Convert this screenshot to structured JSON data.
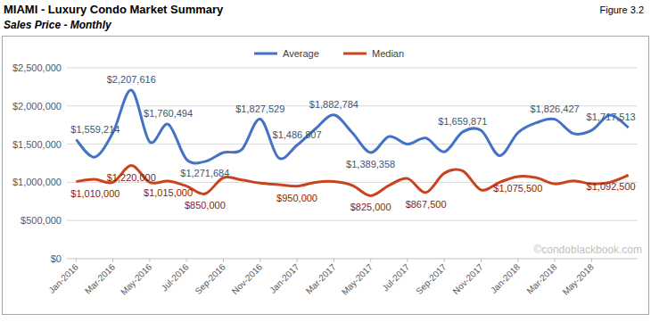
{
  "chart_data": {
    "type": "line",
    "title": "MIAMI - Luxury Condo Market Summary",
    "subtitle": "Sales Price - Monthly",
    "figure": "Figure 3.2",
    "source": "©condoblackbook.com",
    "categories": [
      "Jan-2016",
      null,
      "Mar-2016",
      null,
      "May-2016",
      null,
      "Jul-2016",
      null,
      "Sep-2016",
      null,
      "Nov-2016",
      null,
      "Jan-2017",
      null,
      "Mar-2017",
      null,
      "May-2017",
      null,
      "Jul-2017",
      null,
      "Sep-2017",
      null,
      "Nov-2017",
      null,
      "Jan-2018",
      null,
      "Mar-2018",
      null,
      "May-2018",
      null,
      null
    ],
    "series": [
      {
        "name": "Average",
        "color": "#4472c4",
        "values": [
          1559214,
          1330000,
          1650000,
          2207616,
          1530000,
          1760494,
          1300000,
          1271684,
          1390000,
          1430000,
          1827529,
          1320000,
          1486807,
          1700000,
          1882784,
          1650000,
          1389358,
          1600000,
          1500000,
          1580000,
          1400000,
          1659871,
          1680000,
          1350000,
          1650000,
          1780000,
          1826427,
          1640000,
          1680000,
          1880000,
          1717513
        ],
        "value_labels": [
          "$1,559,214",
          null,
          null,
          "$2,207,616",
          null,
          "$1,760,494",
          null,
          "$1,271,684",
          null,
          null,
          "$1,827,529",
          null,
          "$1,486,807",
          null,
          "$1,882,784",
          null,
          "$1,389,358",
          null,
          null,
          null,
          null,
          "$1,659,871",
          null,
          null,
          null,
          null,
          "$1,826,427",
          null,
          null,
          null,
          "$1,717,513"
        ]
      },
      {
        "name": "Median",
        "color": "#c8431e",
        "values": [
          1010000,
          1040000,
          1000000,
          1220000,
          1000000,
          1015000,
          950000,
          850000,
          1060000,
          1030000,
          990000,
          970000,
          950000,
          1000000,
          1010000,
          960000,
          825000,
          960000,
          1050000,
          867500,
          1120000,
          1150000,
          900000,
          1000000,
          1075500,
          1060000,
          980000,
          1020000,
          980000,
          1000000,
          1092500
        ],
        "value_labels": [
          "$1,010,000",
          null,
          null,
          "$1,220,000",
          null,
          "$1,015,000",
          null,
          "$850,000",
          null,
          null,
          null,
          null,
          "$950,000",
          null,
          null,
          null,
          "$825,000",
          null,
          null,
          "$867,500",
          null,
          null,
          null,
          null,
          "$1,075,500",
          null,
          null,
          null,
          null,
          null,
          "$1,092,500"
        ]
      }
    ],
    "ylim": [
      0,
      2500000
    ],
    "yticks": [
      {
        "value": 0,
        "label": "$0"
      },
      {
        "value": 500000,
        "label": "$500,000"
      },
      {
        "value": 1000000,
        "label": "$1,000,000"
      },
      {
        "value": 1500000,
        "label": "$1,500,000"
      },
      {
        "value": 2000000,
        "label": "$2,000,000"
      },
      {
        "value": 2500000,
        "label": "$2,500,000"
      }
    ],
    "grid": true,
    "legend": "top",
    "data_labels": true
  }
}
